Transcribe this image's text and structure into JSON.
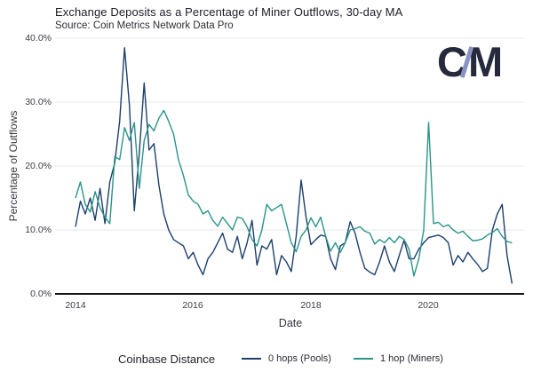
{
  "header": {
    "title": "Exchange Deposits as a Percentage of Miner Outflows, 30-day MA",
    "subtitle": "Source: Coin Metrics Network Data Pro"
  },
  "logo": {
    "name": "coin-metrics-logo",
    "letter_left": "C",
    "letter_right": "M",
    "letter_color": "#262a3c",
    "slash_color": "#8a93c4"
  },
  "chart_data": {
    "type": "line",
    "title": "Exchange Deposits as a Percentage of Miner Outflows, 30-day MA",
    "subtitle": "Source: Coin Metrics Network Data Pro",
    "xlabel": "Date",
    "ylabel": "Percentage of Outflows",
    "grid": true,
    "legend_position": "bottom",
    "legend_title": "Coinbase Distance",
    "ylim": [
      0,
      40
    ],
    "xlim": [
      2013.65,
      2021.65
    ],
    "y_tick_labels": [
      "40.0%",
      "30.0%",
      "20.0%",
      "10.0%",
      "0.0%"
    ],
    "y_tick_values": [
      40,
      30,
      20,
      10,
      0
    ],
    "x_tick_labels": [
      "2014",
      "2016",
      "2018",
      "2020"
    ],
    "x_tick_values": [
      2014,
      2016,
      2018,
      2020
    ],
    "x_interval": "monthly",
    "x_start_month": "2014-01",
    "x_end_month": "2021-06",
    "x_start": 2014.0,
    "x_step_years": 0.0833333,
    "series": [
      {
        "name": "0 hops (Pools)",
        "color": "#1c3f6d",
        "values": [
          10.5,
          14.5,
          12.5,
          15.0,
          11.5,
          16.5,
          11.0,
          17.5,
          20.5,
          27.0,
          38.5,
          29.5,
          13.0,
          22.0,
          33.0,
          22.5,
          23.5,
          17.0,
          12.5,
          10.0,
          8.5,
          8.0,
          7.5,
          5.5,
          6.5,
          4.5,
          3.0,
          5.5,
          6.5,
          8.0,
          9.5,
          7.0,
          6.5,
          9.0,
          5.5,
          8.0,
          11.5,
          4.5,
          7.5,
          7.0,
          8.5,
          3.0,
          6.0,
          5.0,
          3.5,
          9.0,
          17.8,
          12.0,
          7.7,
          8.5,
          9.2,
          9.0,
          5.5,
          3.8,
          7.5,
          8.0,
          11.3,
          9.5,
          6.5,
          4.0,
          3.4,
          3.0,
          5.0,
          7.5,
          5.0,
          3.5,
          6.0,
          8.4,
          5.5,
          5.5,
          7.0,
          8.0,
          8.8,
          9.0,
          9.2,
          8.8,
          8.0,
          4.5,
          6.0,
          5.0,
          6.5,
          5.5,
          4.6,
          3.5,
          4.0,
          10.0,
          12.5,
          14.0,
          6.0,
          1.6
        ]
      },
      {
        "name": "1 hop (Miners)",
        "color": "#2a9488",
        "values": [
          15.0,
          17.5,
          14.0,
          12.8,
          16.0,
          13.5,
          12.0,
          11.0,
          21.5,
          21.0,
          26.0,
          24.0,
          26.8,
          16.5,
          24.0,
          26.5,
          25.5,
          27.5,
          28.7,
          27.0,
          25.0,
          21.0,
          18.5,
          15.5,
          14.5,
          14.0,
          12.5,
          13.0,
          11.5,
          10.6,
          12.0,
          11.0,
          10.0,
          12.0,
          11.8,
          10.5,
          8.5,
          7.5,
          10.0,
          14.0,
          13.0,
          13.5,
          14.0,
          11.0,
          8.0,
          6.6,
          9.0,
          10.0,
          11.9,
          10.5,
          12.0,
          9.0,
          6.7,
          8.0,
          6.5,
          8.0,
          10.0,
          10.2,
          10.5,
          9.8,
          9.5,
          7.8,
          8.5,
          8.0,
          8.8,
          8.0,
          9.0,
          8.5,
          7.0,
          2.8,
          5.5,
          10.0,
          26.8,
          11.0,
          11.2,
          10.5,
          10.8,
          10.0,
          9.5,
          9.8,
          9.0,
          8.3,
          8.4,
          8.6,
          9.2,
          9.6,
          10.2,
          9.0,
          8.2,
          8.0
        ]
      }
    ],
    "colors": {
      "grid": "#e8e8ea",
      "axis": "#141414",
      "series_0": "#1c3f6d",
      "series_1": "#2a9488"
    }
  }
}
